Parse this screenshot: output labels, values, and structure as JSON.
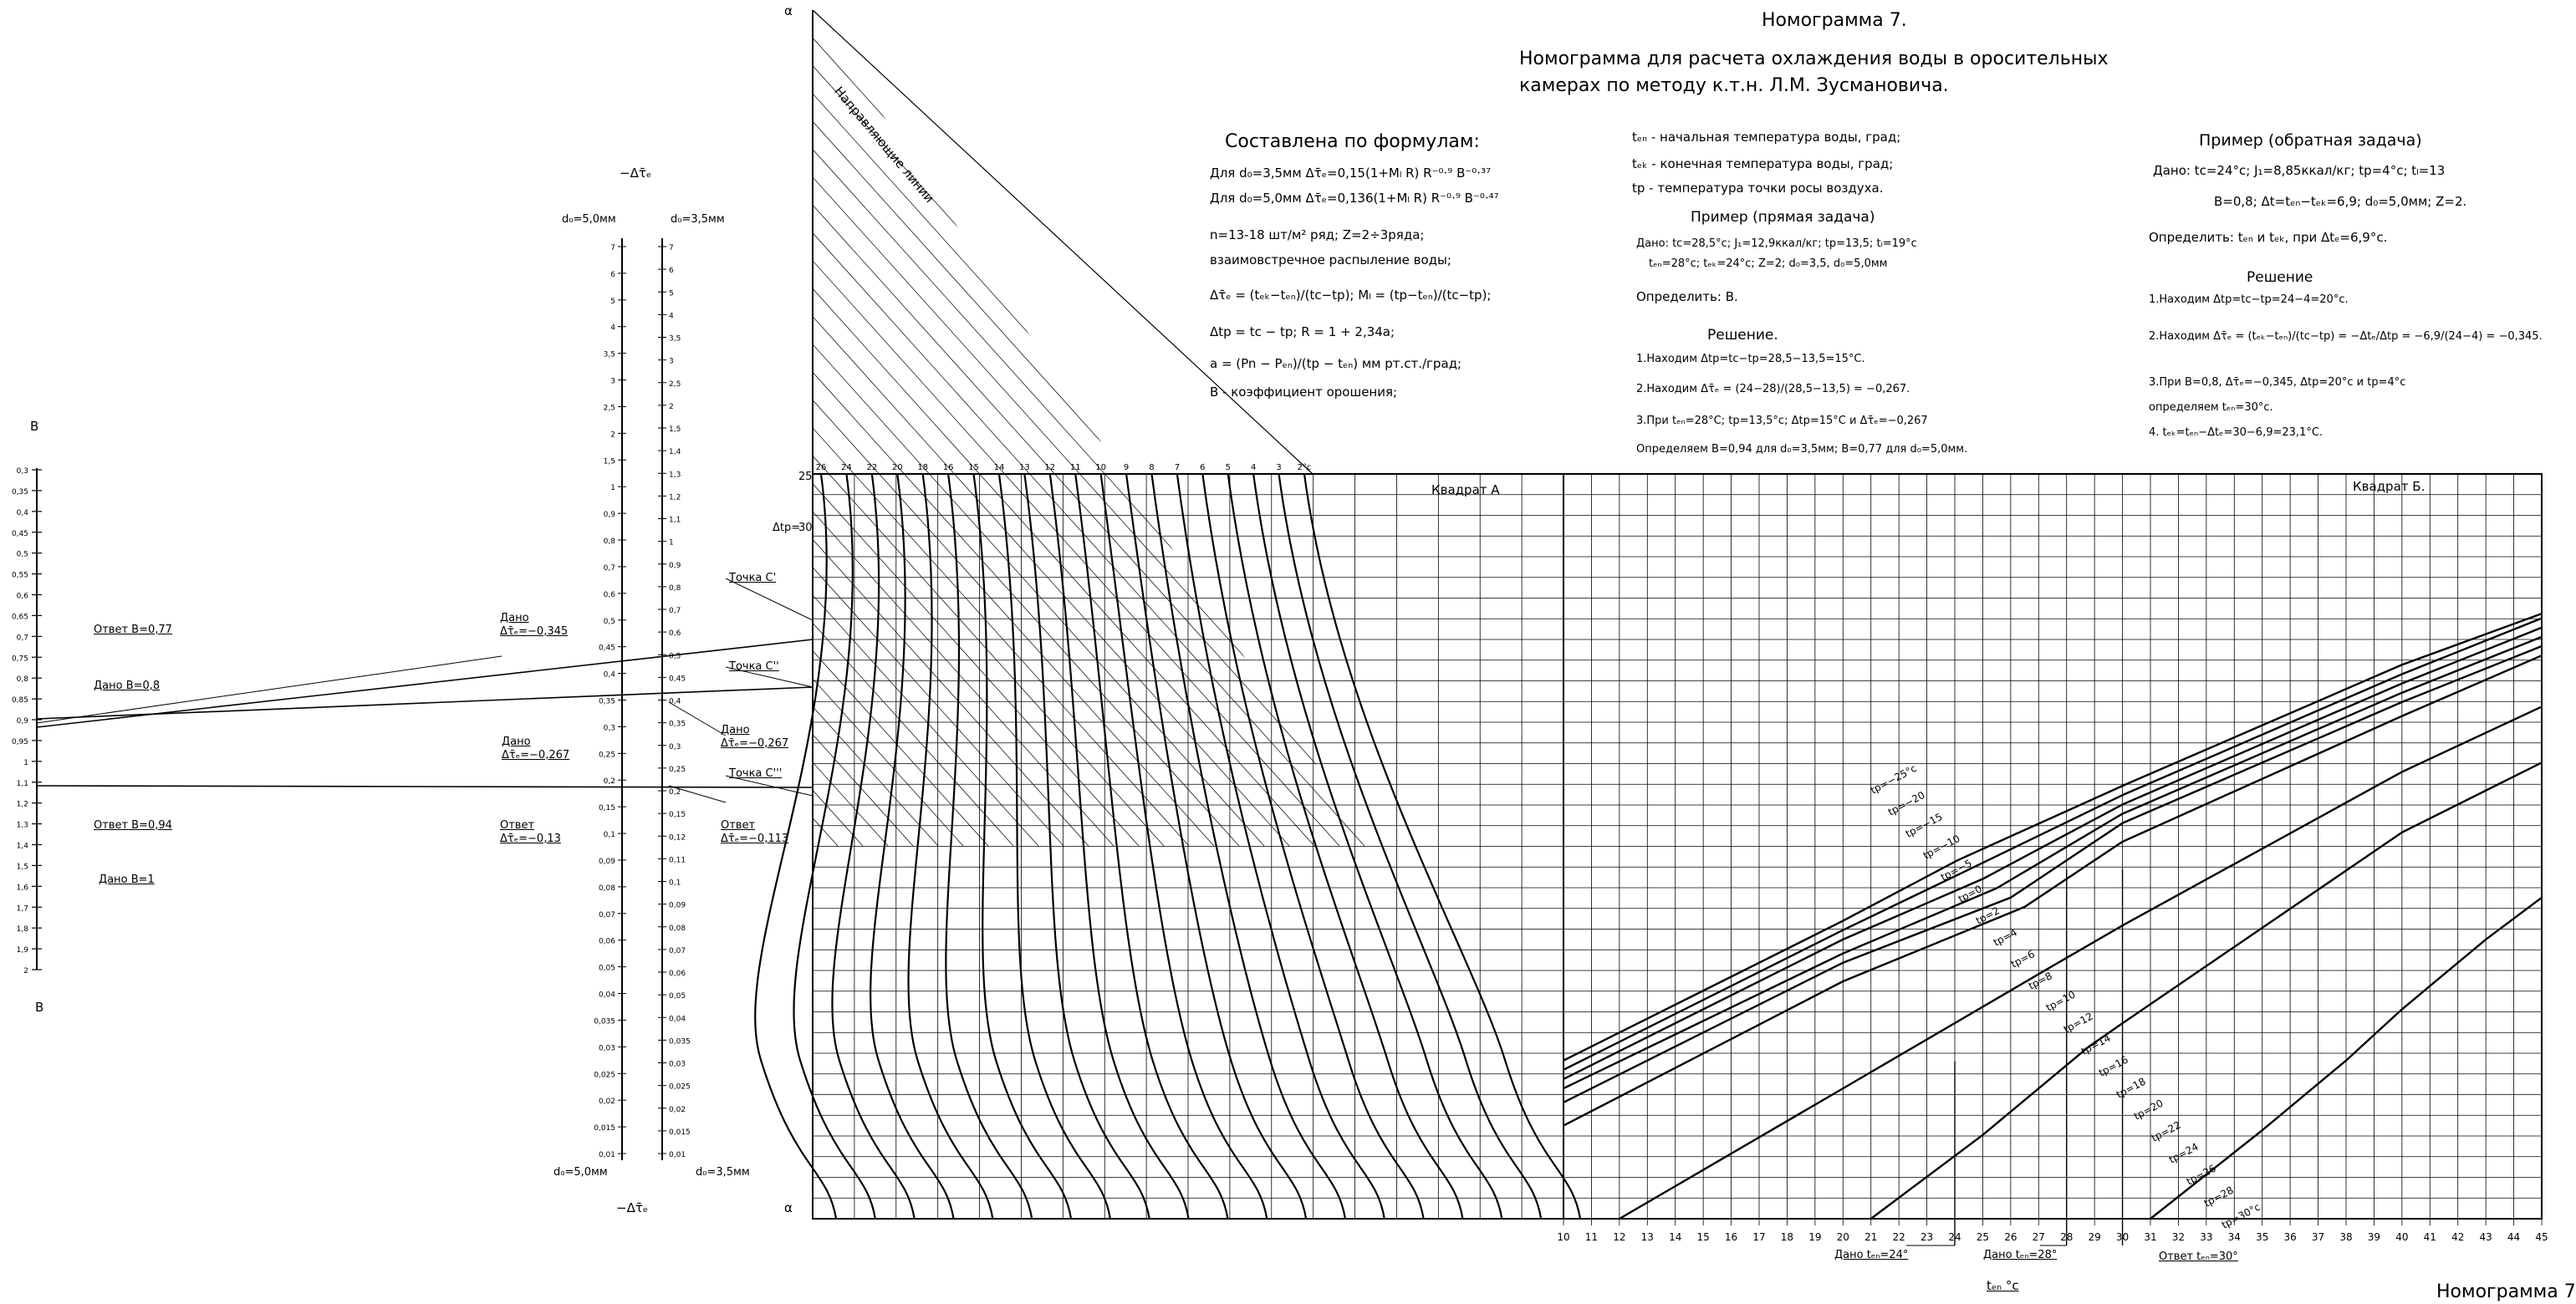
{
  "header": {
    "title": "Номограмма 7.",
    "subtitle_line1": "Номограмма для расчета охлаждения воды в оросительных",
    "subtitle_line2": "камерах по методу к.т.н. Л.М. Зусмановича.",
    "footer_label": "Номограмма 7"
  },
  "formulas": {
    "heading": "Составлена по формулам:",
    "lines": [
      "Для d₀=3,5мм  Δτ̄ₑ=0,15(1+Mₗ R) R⁻⁰·⁹ B⁻⁰·³⁷",
      "Для d₀=5,0мм  Δτ̄ₑ=0,136(1+Mₗ R) R⁻⁰·⁹ B⁻⁰·⁴⁷",
      "n=13-18 шт/м² ряд;  Z=2÷3ряда;",
      "взаимовстречное распыление воды;",
      "Δτ̄ₑ = (tₑₖ−tₑₙ)/(tc−tp);  Mₗ = (tp−tₑₙ)/(tc−tp);",
      "Δtp = tc − tp;  R = 1 + 2,34a;",
      "a = (Pn − Pₑₙ)/(tp − tₑₙ) мм рт.ст./град;",
      "B - коэффициент орошения;"
    ]
  },
  "definitions": [
    "tₑₙ - начальная температура воды, град;",
    "tₑₖ - конечная температура воды, град;",
    "tp - температура точки росы воздуха."
  ],
  "direct_example": {
    "heading": "Пример (прямая задача)",
    "given": [
      "Дано: tc=28,5°c; J₁=12,9ккал/кг; tp=13,5; tₗ=19°c",
      "tₑₙ=28°c; tₑₖ=24°c; Z=2; d₀=3,5, d₀=5,0мм"
    ],
    "find": "Определить: B.",
    "solution_heading": "Решение.",
    "steps": [
      "1.Находим Δtp=tc−tp=28,5−13,5=15°C.",
      "2.Находим Δτ̄ₑ = (24−28)/(28,5−13,5) = −0,267.",
      "3.При tₑₙ=28°C; tp=13,5°c; Δtp=15°C и Δτ̄ₑ=−0,267",
      "Определяем B=0,94 для d₀=3,5мм; B=0,77 для d₀=5,0мм."
    ]
  },
  "inverse_example": {
    "heading": "Пример (обратная задача)",
    "given": [
      "Дано: tc=24°c;  J₁=8,85ккал/кг; tp=4°c; tₗ=13",
      "B=0,8; Δt=tₑₙ−tₑₖ=6,9; d₀=5,0мм; Z=2."
    ],
    "find": "Определить: tₑₙ и tₑₖ, при Δtₑ=6,9°c.",
    "solution_heading": "Решение",
    "steps": [
      "1.Находим Δtp=tc−tp=24−4=20°c.",
      "2.Находим Δτ̄ₑ = (tₑₖ−tₑₙ)/(tc−tp) = −Δtₑ/Δtp = −6,9/(24−4) = −0,345.",
      "3.При B=0,8, Δτ̄ₑ=−0,345, Δtp=20°c и tp=4°c",
      "определяем tₑₙ=30°c.",
      "4. tₑₖ=tₑₙ−Δtₑ=30−6,9=23,1°C."
    ]
  },
  "scales": {
    "B": {
      "label_top": "B",
      "label_bottom": "B",
      "ticks": [
        "0,3",
        "0,35",
        "0,4",
        "0,45",
        "0,5",
        "0,55",
        "0,6",
        "0,65",
        "0,7",
        "0,75",
        "0,8",
        "0,85",
        "0,9",
        "0,95",
        "1",
        "1,1",
        "1,2",
        "1,3",
        "1,4",
        "1,5",
        "1,6",
        "1,7",
        "1,8",
        "1,9",
        "2"
      ],
      "annotations": [
        "Ответ B=0,77",
        "Дано B=0,8",
        "Ответ B=0,94",
        "Дано B=1"
      ]
    },
    "dtau": {
      "title": "−Δτ̄ₑ",
      "title_bottom": "−Δτ̄ₑ",
      "d5_label": "d₀=5,0мм",
      "d35_label": "d₀=3,5мм",
      "ticks_d5": [
        "7",
        "6",
        "5",
        "4",
        "3,5",
        "3",
        "2,5",
        "2",
        "1,5",
        "1",
        "0,9",
        "0,8",
        "0,7",
        "0,6",
        "0,5",
        "0,45",
        "0,4",
        "0,35",
        "0,3",
        "0,25",
        "0,2",
        "0,15",
        "0,1",
        "0,09",
        "0,08",
        "0,07",
        "0,06",
        "0,05",
        "0,04",
        "0,035",
        "0,03",
        "0,025",
        "0,02",
        "0,015",
        "0,01"
      ],
      "ticks_d35": [
        "7",
        "6",
        "5",
        "4",
        "3,5",
        "3",
        "2,5",
        "2",
        "1,5",
        "1,4",
        "1,3",
        "1,2",
        "1,1",
        "1",
        "0,9",
        "0,8",
        "0,7",
        "0,6",
        "0,5",
        "0,45",
        "0,4",
        "0,35",
        "0,3",
        "0,25",
        "0,2",
        "0,15",
        "0,12",
        "0,11",
        "0,1",
        "0,09",
        "0,08",
        "0,07",
        "0,06",
        "0,05",
        "0,04",
        "0,035",
        "0,03",
        "0,025",
        "0,02",
        "0,015",
        "0,01"
      ],
      "annotations": [
        "Дано Δτ̄ₑ=−0,345",
        "Дано Δτ̄ₑ=−0,267",
        "Ответ Δτ̄ₑ=−0,13",
        "Дано Δτ̄ₑ=−0,267",
        "Ответ Δτ̄ₑ=−0,113"
      ],
      "points": [
        "Точка C'",
        "Точка C''",
        "Точка C'''"
      ]
    }
  },
  "quadrant_A": {
    "label": "Квадрат A",
    "axis_label": "α",
    "guide_label": "Направляющие линии",
    "dt_label": "Δtp=",
    "dt_values": [
      "26",
      "24",
      "22",
      "20",
      "18",
      "16",
      "15",
      "14",
      "13",
      "12",
      "11",
      "10",
      "9",
      "8",
      "7",
      "6",
      "5",
      "4",
      "3",
      "2°c"
    ],
    "side_values": [
      "25",
      "30"
    ]
  },
  "quadrant_B": {
    "label": "Квадрат Б.",
    "tp_labels": [
      "tp=−25°c",
      "tp=−20",
      "tp=−15",
      "tp=−10",
      "tp=−5",
      "tp=0",
      "tp=2",
      "tp=4",
      "tp=6",
      "tp=8",
      "tp=10",
      "tp=12",
      "tp=14",
      "tp=16",
      "tp=18",
      "tp=20",
      "tp=22",
      "tp=24",
      "tp=26",
      "tp=28",
      "tp=30°c"
    ],
    "x_axis_label": "tₑₙ °c",
    "x_ticks": [
      "10",
      "11",
      "12",
      "13",
      "14",
      "15",
      "16",
      "17",
      "18",
      "19",
      "20",
      "21",
      "22",
      "23",
      "24",
      "25",
      "26",
      "27",
      "28",
      "29",
      "30",
      "31",
      "32",
      "33",
      "34",
      "35",
      "36",
      "37",
      "38",
      "39",
      "40",
      "41",
      "42",
      "43",
      "44",
      "45"
    ],
    "annotations": [
      "Дано tₑₙ=24°",
      "Дано tₑₙ=28°",
      "Ответ tₑₙ=30°"
    ]
  },
  "chart_data": {
    "type": "line",
    "title": "Номограмма 7.",
    "xlabel": "tₑₙ °c",
    "x_range": [
      10,
      45
    ],
    "series": [
      {
        "name": "tp=−25°c",
        "x": [
          10,
          20,
          24.1,
          30,
          40,
          45
        ],
        "y": [
          0.34,
          0.64,
          0.77,
          0.93,
          1.19,
          1.3
        ]
      },
      {
        "name": "tp=−20",
        "x": [
          10,
          20,
          24.5,
          30,
          40,
          45
        ],
        "y": [
          0.32,
          0.62,
          0.75,
          0.91,
          1.17,
          1.29
        ]
      },
      {
        "name": "tp=−15",
        "x": [
          10,
          20,
          25,
          30,
          40,
          45
        ],
        "y": [
          0.3,
          0.6,
          0.73,
          0.89,
          1.15,
          1.27
        ]
      },
      {
        "name": "tp=−10",
        "x": [
          10,
          20,
          25.5,
          30,
          40,
          45
        ],
        "y": [
          0.28,
          0.57,
          0.71,
          0.87,
          1.13,
          1.25
        ]
      },
      {
        "name": "tp=−5",
        "x": [
          10,
          20,
          26,
          30,
          40,
          45
        ],
        "y": [
          0.25,
          0.55,
          0.69,
          0.85,
          1.11,
          1.23
        ]
      },
      {
        "name": "tp=0",
        "x": [
          10,
          20,
          26.5,
          30,
          40,
          45
        ],
        "y": [
          0.2,
          0.51,
          0.67,
          0.81,
          1.08,
          1.21
        ]
      },
      {
        "name": "tp=10",
        "x": [
          12,
          20,
          27.7,
          30,
          40,
          45
        ],
        "y": [
          0.0,
          0.28,
          0.55,
          0.63,
          0.96,
          1.1
        ]
      },
      {
        "name": "tp=20",
        "x": [
          21,
          25,
          28.8,
          30,
          40,
          45
        ],
        "y": [
          0.0,
          0.18,
          0.37,
          0.42,
          0.83,
          0.98
        ]
      },
      {
        "name": "tp=30°c",
        "x": [
          31,
          35,
          38,
          40,
          43,
          45
        ],
        "y": [
          0.0,
          0.19,
          0.34,
          0.45,
          0.6,
          0.69
        ]
      }
    ]
  }
}
